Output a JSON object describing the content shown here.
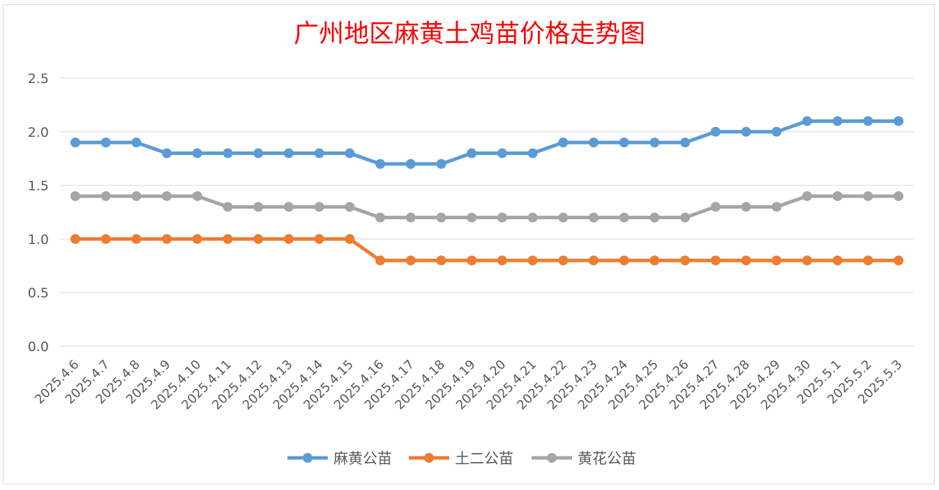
{
  "chart_data": {
    "type": "line",
    "title": "广州地区麻黄土鸡苗价格走势图",
    "xlabel": "",
    "ylabel": "",
    "categories": [
      "2025.4.6",
      "2025.4.7",
      "2025.4.8",
      "2025.4.9",
      "2025.4.10",
      "2025.4.11",
      "2025.4.12",
      "2025.4.13",
      "2025.4.14",
      "2025.4.15",
      "2025.4.16",
      "2025.4.17",
      "2025.4.18",
      "2025.4.19",
      "2025.4.20",
      "2025.4.21",
      "2025.4.22",
      "2025.4.23",
      "2025.4.24",
      "2025.4.25",
      "2025.4.26",
      "2025.4.27",
      "2025.4.28",
      "2025.4.29",
      "2025.4.30",
      "2025.5.1",
      "2025.5.2",
      "2025.5.3"
    ],
    "yticks": [
      "0.0",
      "0.5",
      "1.0",
      "1.5",
      "2.0",
      "2.5"
    ],
    "ylim": [
      0,
      2.5
    ],
    "grid": true,
    "legend_position": "bottom",
    "series": [
      {
        "name": "麻黄公苗",
        "color": "#5b9bd5",
        "values": [
          1.9,
          1.9,
          1.9,
          1.8,
          1.8,
          1.8,
          1.8,
          1.8,
          1.8,
          1.8,
          1.7,
          1.7,
          1.7,
          1.8,
          1.8,
          1.8,
          1.9,
          1.9,
          1.9,
          1.9,
          1.9,
          2.0,
          2.0,
          2.0,
          2.1,
          2.1,
          2.1,
          2.1
        ]
      },
      {
        "name": "土二公苗",
        "color": "#ed7d31",
        "values": [
          1.0,
          1.0,
          1.0,
          1.0,
          1.0,
          1.0,
          1.0,
          1.0,
          1.0,
          1.0,
          0.8,
          0.8,
          0.8,
          0.8,
          0.8,
          0.8,
          0.8,
          0.8,
          0.8,
          0.8,
          0.8,
          0.8,
          0.8,
          0.8,
          0.8,
          0.8,
          0.8,
          0.8
        ]
      },
      {
        "name": "黄花公苗",
        "color": "#a5a5a5",
        "values": [
          1.4,
          1.4,
          1.4,
          1.4,
          1.4,
          1.3,
          1.3,
          1.3,
          1.3,
          1.3,
          1.2,
          1.2,
          1.2,
          1.2,
          1.2,
          1.2,
          1.2,
          1.2,
          1.2,
          1.2,
          1.2,
          1.3,
          1.3,
          1.3,
          1.4,
          1.4,
          1.4,
          1.4
        ]
      }
    ]
  }
}
